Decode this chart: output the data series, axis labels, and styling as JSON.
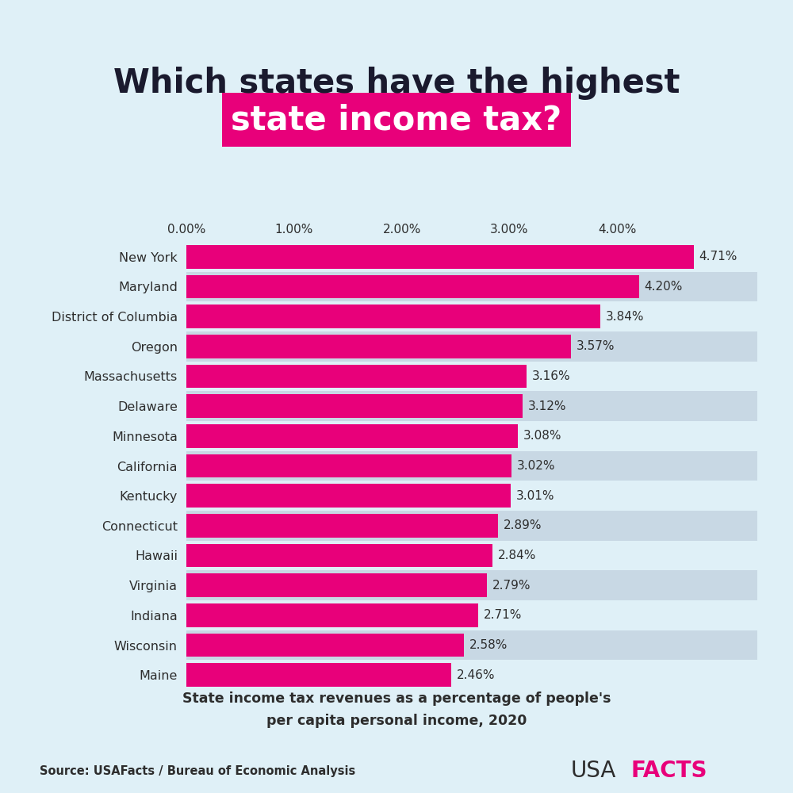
{
  "title_line1": "Which states have the highest",
  "title_line2": "state income tax?",
  "subtitle": "State income tax revenues as a percentage of people's\nper capita personal income, 2020",
  "source": "Source: USAFacts / Bureau of Economic Analysis",
  "states": [
    "New York",
    "Maryland",
    "District of Columbia",
    "Oregon",
    "Massachusetts",
    "Delaware",
    "Minnesota",
    "California",
    "Kentucky",
    "Connecticut",
    "Hawaii",
    "Virginia",
    "Indiana",
    "Wisconsin",
    "Maine"
  ],
  "values": [
    4.71,
    4.2,
    3.84,
    3.57,
    3.16,
    3.12,
    3.08,
    3.02,
    3.01,
    2.89,
    2.84,
    2.79,
    2.71,
    2.58,
    2.46
  ],
  "bar_color": "#E8007A",
  "background_color": "#DFF0F7",
  "bar_bg_color": "#C8D8E4",
  "title_color": "#1a1a2e",
  "highlight_bg": "#E8007A",
  "highlight_text_color": "#FFFFFF",
  "label_color": "#2d2d2d",
  "value_color": "#2d2d2d",
  "usa_color": "#2d2d2d",
  "facts_color": "#E8007A",
  "xlim": [
    0,
    5.3
  ],
  "xticks": [
    0.0,
    1.0,
    2.0,
    3.0,
    4.0
  ],
  "xtick_labels": [
    "0.00%",
    "1.00%",
    "2.00%",
    "3.00%",
    "4.00%"
  ]
}
